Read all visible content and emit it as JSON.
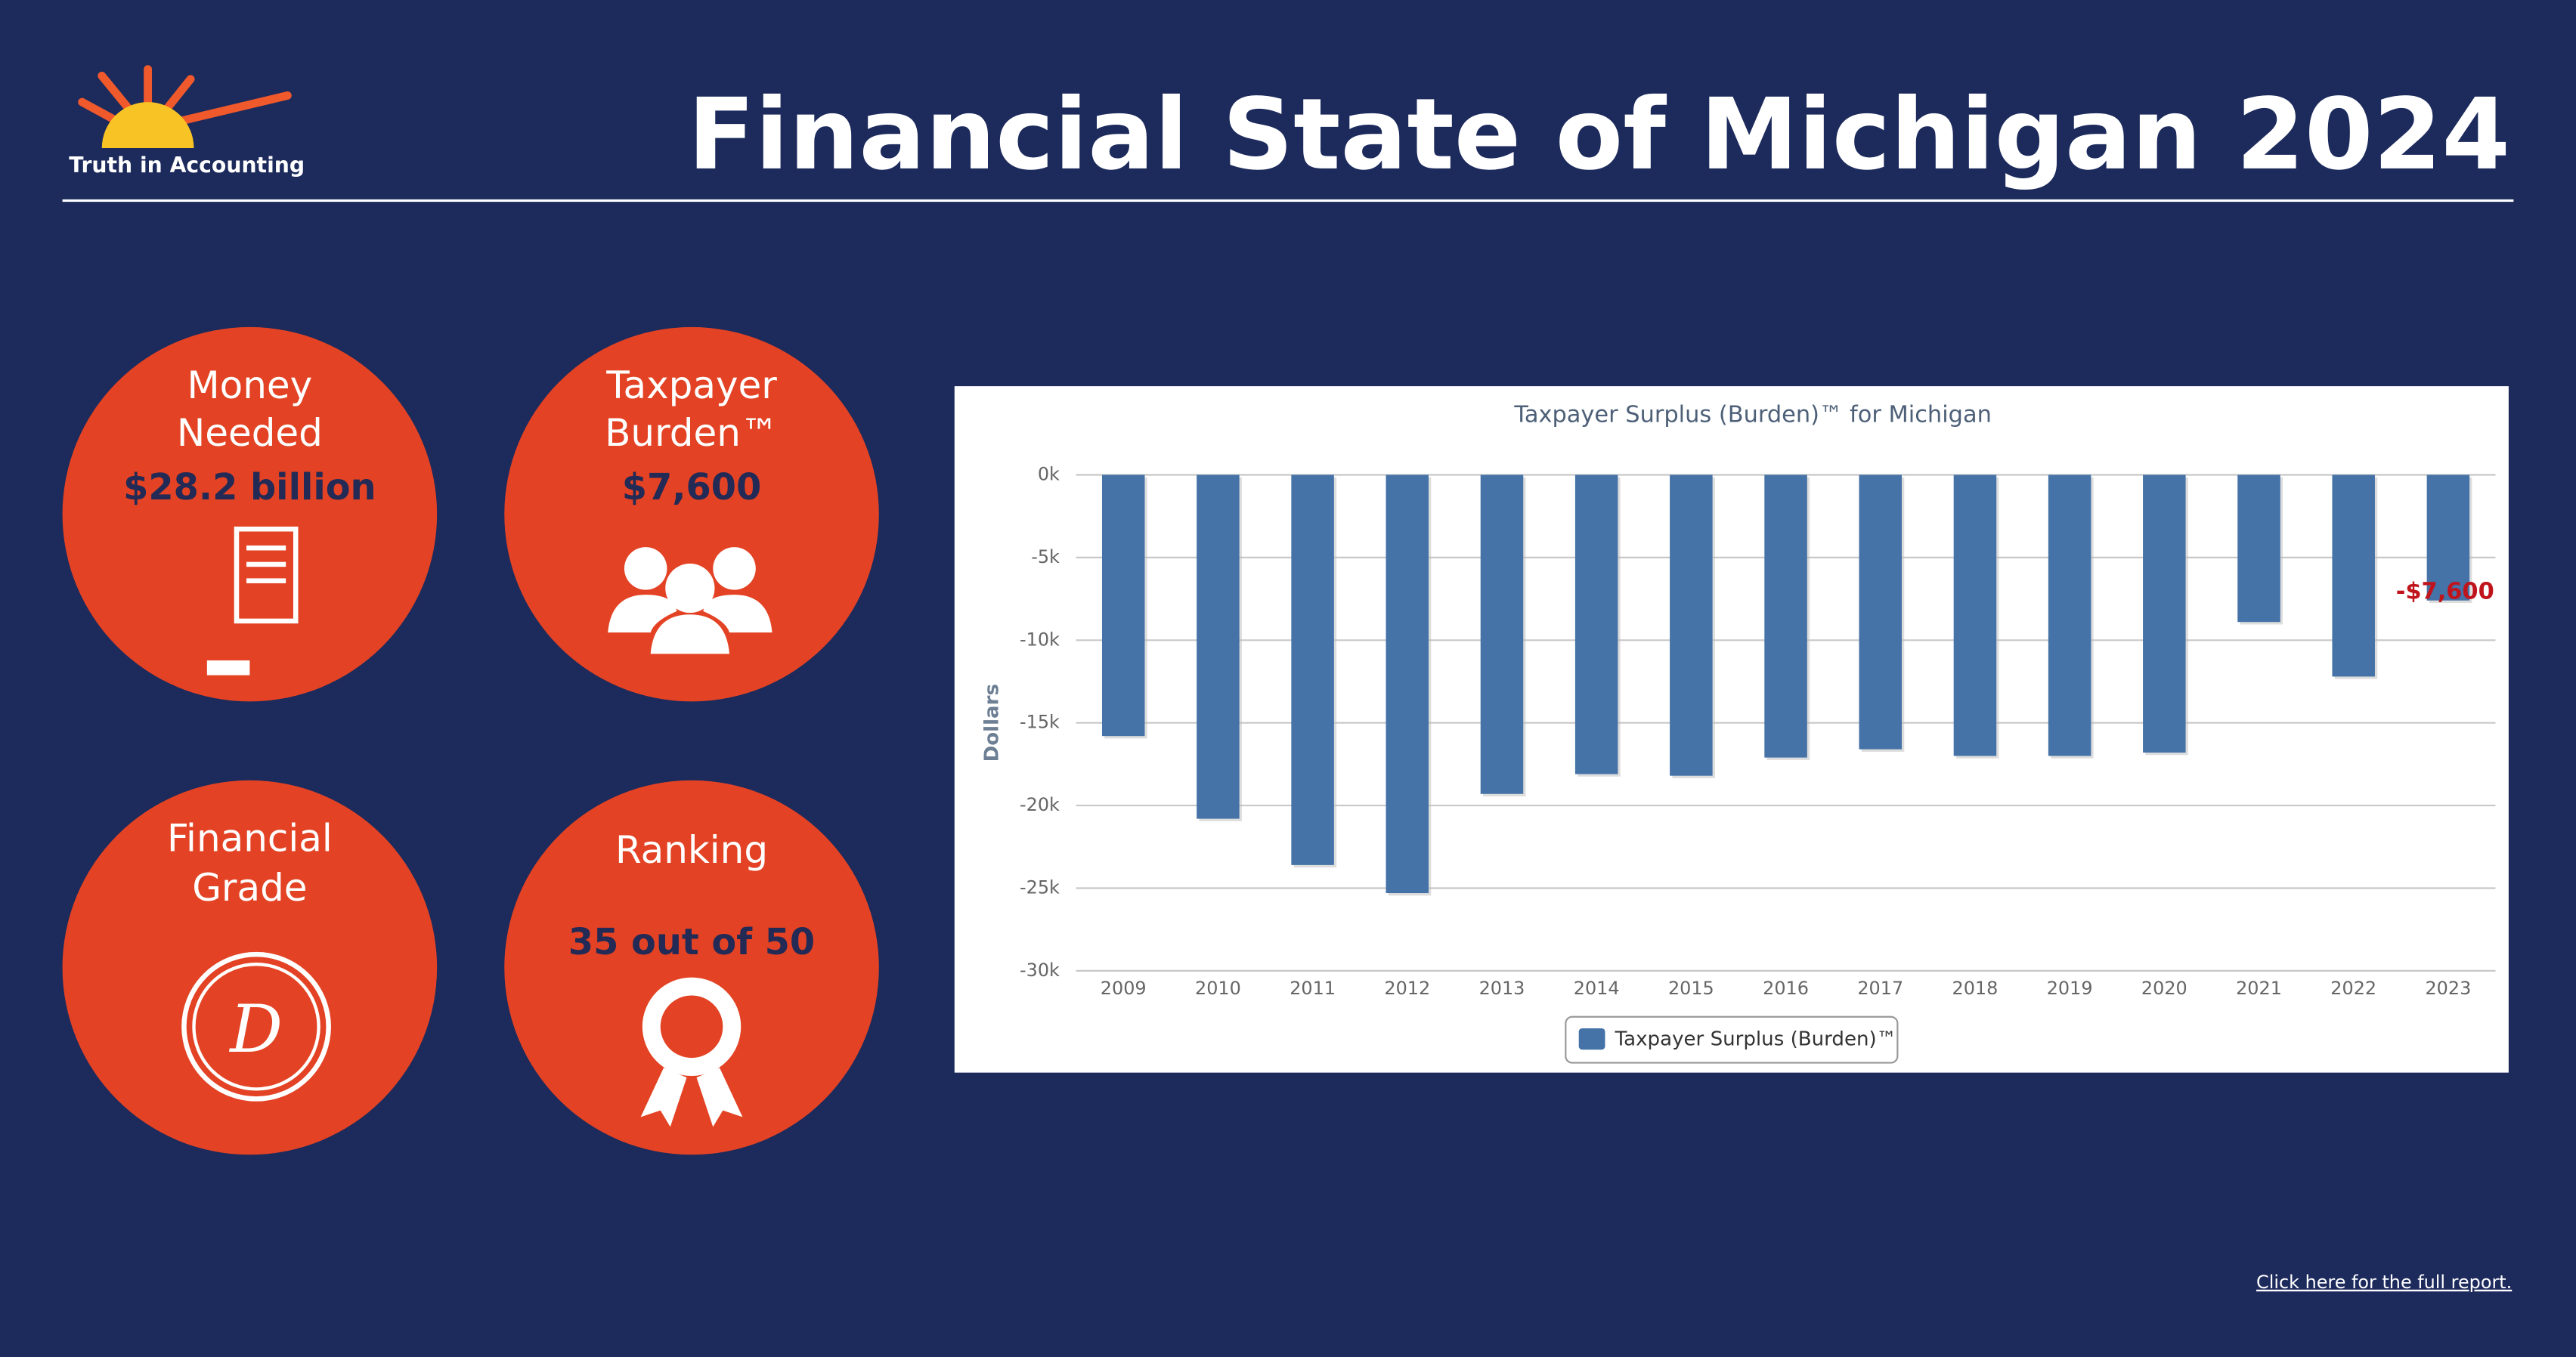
{
  "header": {
    "logo_text": "Truth in Accounting",
    "title": "Financial State of Michigan 2024"
  },
  "cards": [
    {
      "label": [
        "Money",
        "Needed"
      ],
      "value": "$28.2 billion"
    },
    {
      "label": [
        "Taxpayer",
        "Burden™"
      ],
      "value": "$7,600"
    },
    {
      "label": [
        "Financial",
        "Grade"
      ],
      "grade": "D"
    },
    {
      "label": [
        "Ranking"
      ],
      "value": "35 out of 50"
    }
  ],
  "chart_data": {
    "type": "bar",
    "title": "Taxpayer Surplus (Burden)™ for Michigan",
    "y_label": "Dollars",
    "categories": [
      "2009",
      "2010",
      "2011",
      "2012",
      "2013",
      "2014",
      "2015",
      "2016",
      "2017",
      "2018",
      "2019",
      "2020",
      "2021",
      "2022",
      "2023"
    ],
    "series": [
      {
        "name": "Taxpayer Surplus (Burden)™",
        "color": "#4572a7",
        "values": [
          -15800,
          -20800,
          -23600,
          -25300,
          -19300,
          -18100,
          -18200,
          -17100,
          -16600,
          -17000,
          -17000,
          -16800,
          -8900,
          -12200,
          -7600
        ],
        "value_labels": [
          null,
          null,
          null,
          null,
          null,
          null,
          null,
          null,
          null,
          null,
          null,
          null,
          null,
          null,
          "-$7,600"
        ]
      }
    ],
    "ylim": [
      -30000,
      0
    ],
    "yticks": [
      {
        "value": 0,
        "label": "0k"
      },
      {
        "value": -5000,
        "label": "-5k"
      },
      {
        "value": -10000,
        "label": "-10k"
      },
      {
        "value": -15000,
        "label": "-15k"
      },
      {
        "value": -20000,
        "label": "-20k"
      },
      {
        "value": -25000,
        "label": "-25k"
      },
      {
        "value": -30000,
        "label": "-30k"
      }
    ],
    "grid": true,
    "legend": "bottom"
  },
  "footer": {
    "link": "Click here for the full report."
  }
}
